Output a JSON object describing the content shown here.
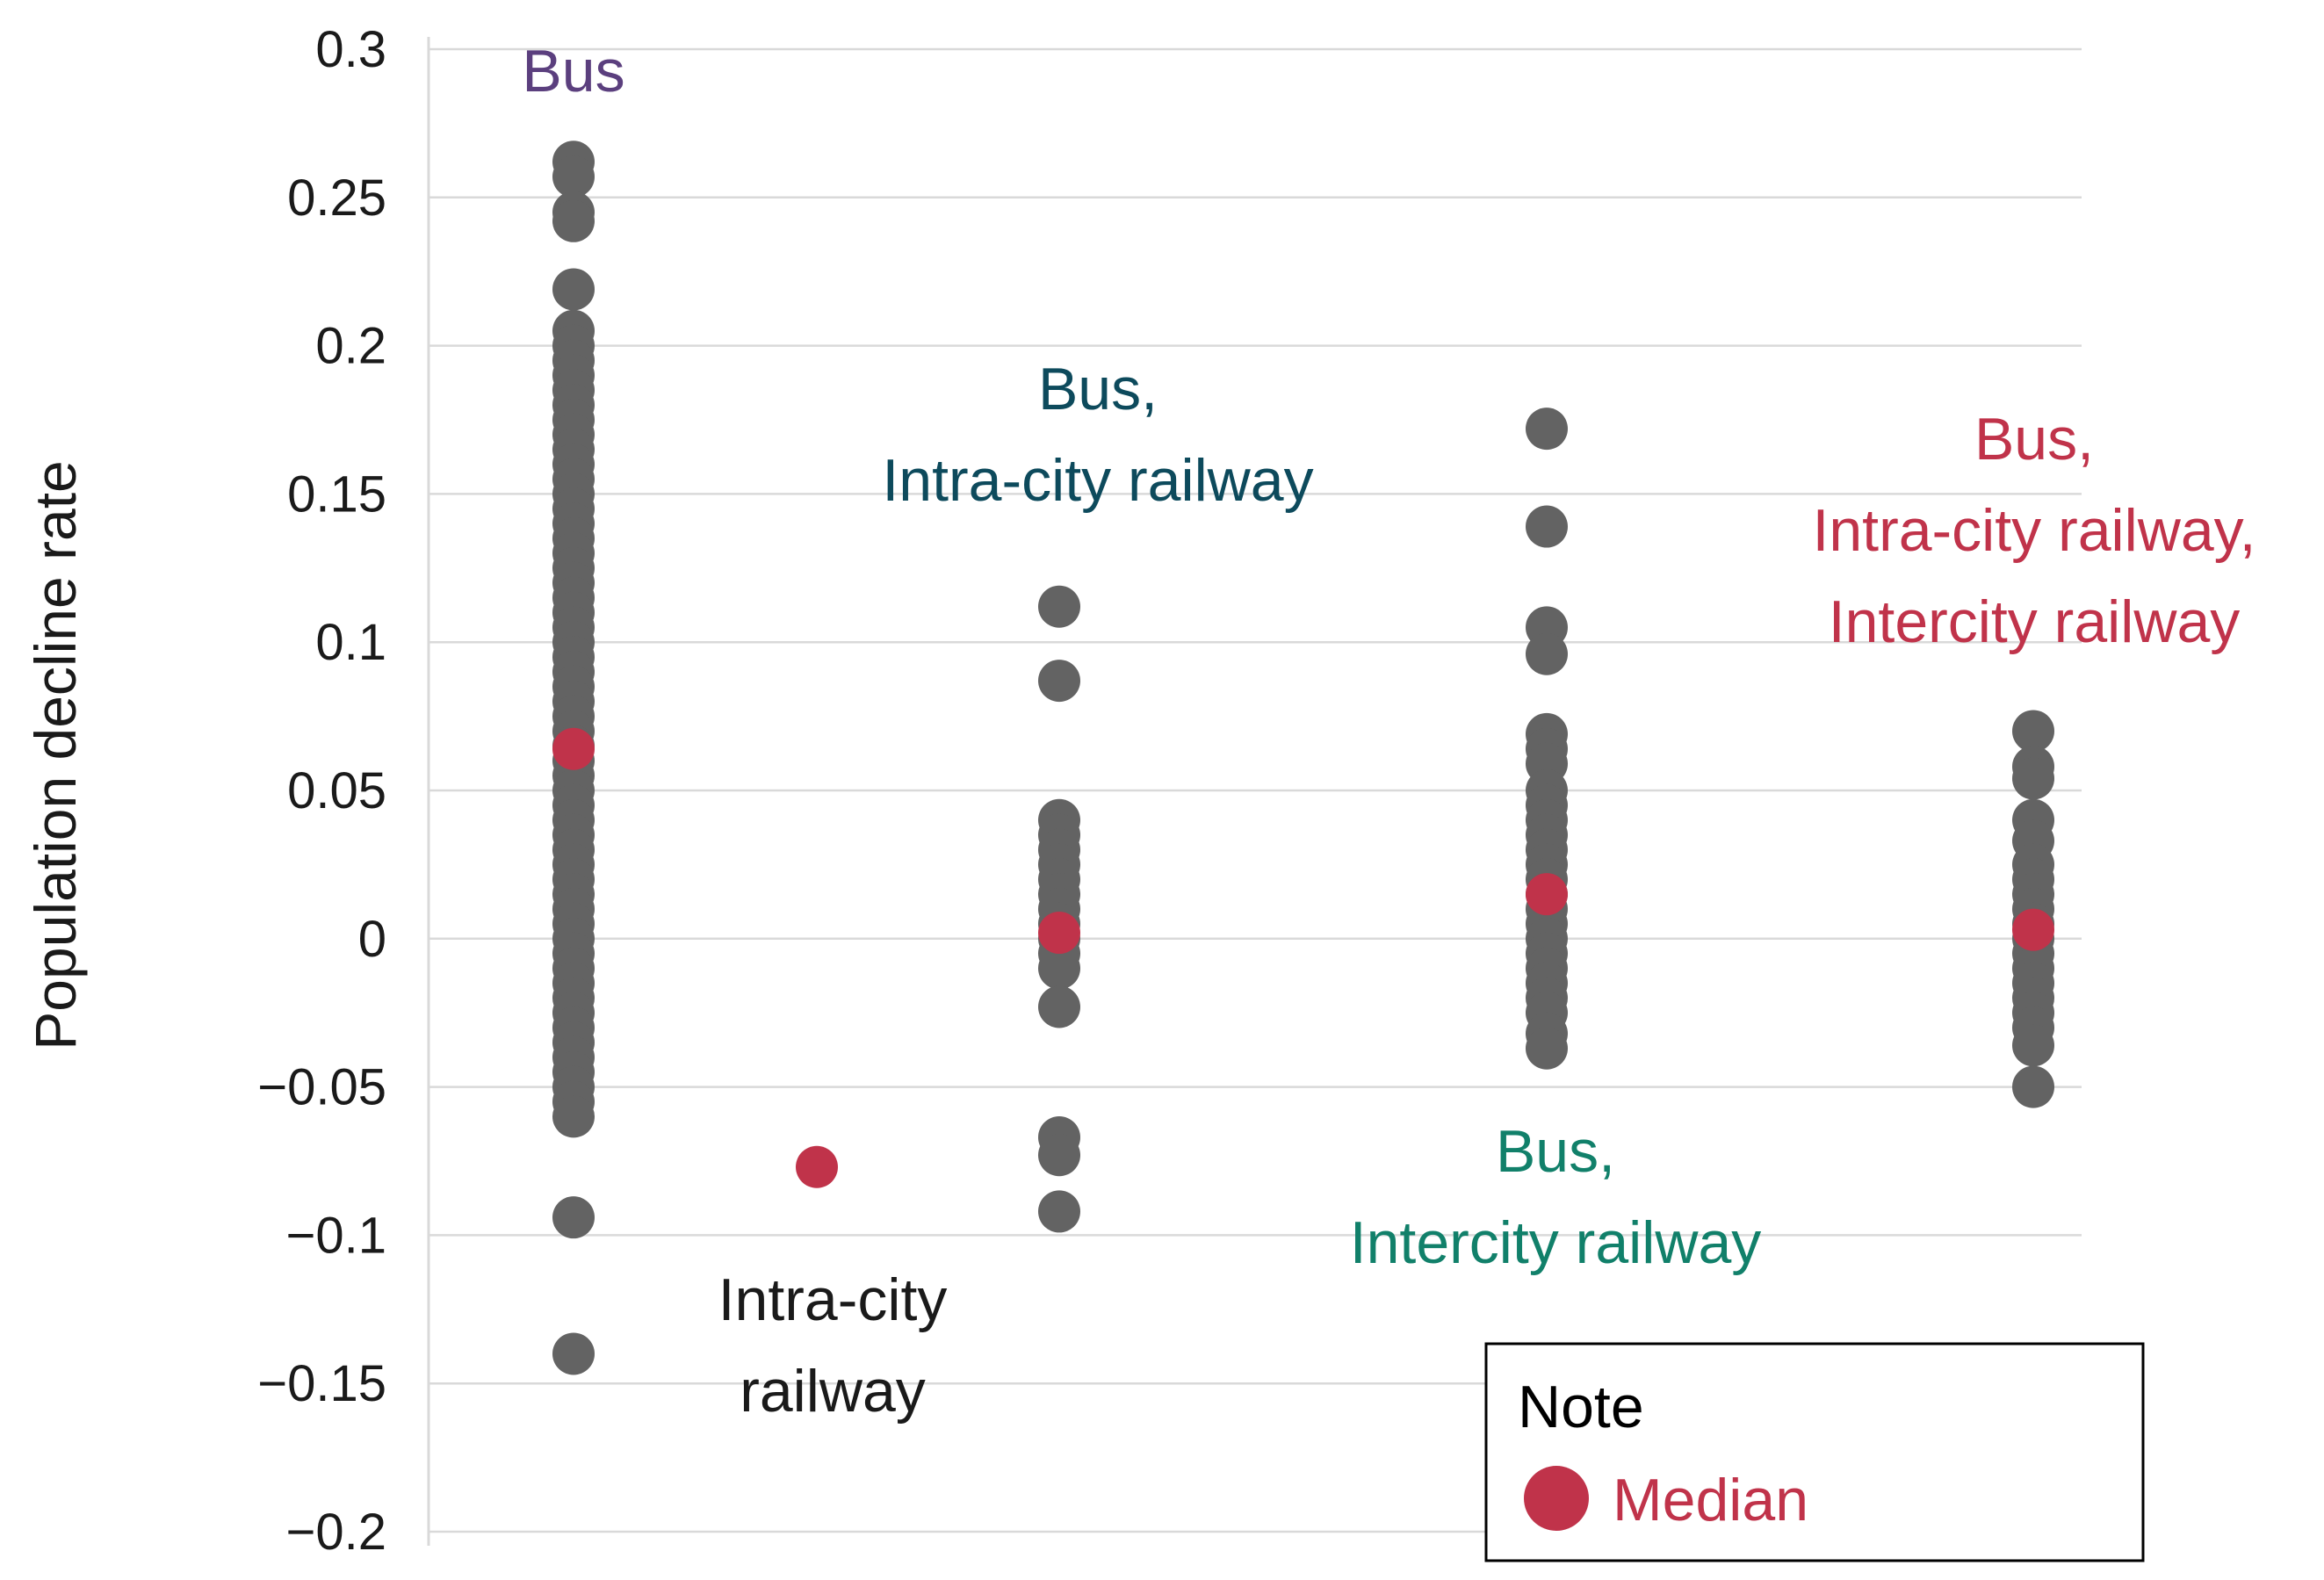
{
  "chart_data": {
    "type": "scatter",
    "ylabel": "Population decline rate",
    "ylim": [
      -0.2,
      0.3
    ],
    "yticks": [
      0.3,
      0.25,
      0.2,
      0.15,
      0.1,
      0.05,
      0,
      -0.05,
      -0.1,
      -0.15,
      -0.2
    ],
    "ytick_labels": [
      "0.3",
      "0.25",
      "0.2",
      "0.15",
      "0.1",
      "0.05",
      "0",
      "−0.05",
      "−0.1",
      "−0.15",
      "−0.2"
    ],
    "grid": true,
    "colors": {
      "points": "#636363",
      "median": "#c0334a",
      "grid": "#d9d9d9",
      "axis": "#d9d9d9"
    },
    "groups": [
      {
        "label_lines": [
          "Bus"
        ],
        "label_color": "#5b3f7e",
        "x_position": 1,
        "values": [
          0.262,
          0.257,
          0.245,
          0.242,
          0.219,
          0.205,
          0.2,
          0.195,
          0.19,
          0.185,
          0.18,
          0.175,
          0.17,
          0.165,
          0.16,
          0.155,
          0.15,
          0.145,
          0.14,
          0.135,
          0.13,
          0.125,
          0.12,
          0.115,
          0.11,
          0.105,
          0.1,
          0.095,
          0.09,
          0.085,
          0.08,
          0.075,
          0.07,
          0.065,
          0.06,
          0.055,
          0.05,
          0.045,
          0.04,
          0.035,
          0.03,
          0.025,
          0.02,
          0.015,
          0.01,
          0.005,
          0.0,
          -0.005,
          -0.01,
          -0.015,
          -0.02,
          -0.025,
          -0.03,
          -0.035,
          -0.04,
          -0.045,
          -0.05,
          -0.055,
          -0.06,
          -0.094,
          -0.14
        ],
        "median": 0.064
      },
      {
        "label_lines": [
          "Intra-city",
          "railway"
        ],
        "label_color": "#1a1a1a",
        "x_position": 1.5,
        "values": [],
        "median": -0.077
      },
      {
        "label_lines": [
          "Bus,",
          "Intra-city railway"
        ],
        "label_color": "#0d4a5c",
        "x_position": 2,
        "values": [
          0.112,
          0.087,
          0.04,
          0.035,
          0.03,
          0.025,
          0.02,
          0.015,
          0.01,
          0.005,
          0.0,
          -0.005,
          -0.01,
          -0.023,
          -0.067,
          -0.073,
          -0.092
        ],
        "median": 0.002
      },
      {
        "label_lines": [
          "Bus,",
          "Intercity railway"
        ],
        "label_color": "#11806a",
        "x_position": 3,
        "values": [
          0.172,
          0.139,
          0.105,
          0.096,
          0.069,
          0.064,
          0.059,
          0.05,
          0.045,
          0.04,
          0.035,
          0.03,
          0.025,
          0.02,
          0.015,
          0.01,
          0.005,
          0.0,
          -0.005,
          -0.01,
          -0.015,
          -0.02,
          -0.025,
          -0.032,
          -0.037
        ],
        "median": 0.015
      },
      {
        "label_lines": [
          "Bus,",
          "Intra-city railway,",
          "Intercity railway"
        ],
        "label_color": "#c0334a",
        "x_position": 4,
        "values": [
          0.07,
          0.058,
          0.054,
          0.04,
          0.033,
          0.025,
          0.02,
          0.015,
          0.01,
          0.005,
          0.0,
          -0.005,
          -0.01,
          -0.015,
          -0.02,
          -0.025,
          -0.03,
          -0.036,
          -0.05
        ],
        "median": 0.003
      }
    ],
    "legend": {
      "title": "Note",
      "items": [
        {
          "label": "Median",
          "color": "#c0334a"
        }
      ],
      "placement": "bottom-right"
    }
  }
}
